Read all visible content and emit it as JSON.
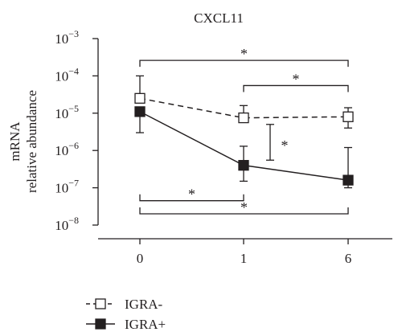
{
  "chart_data": {
    "type": "line",
    "title": "CXCL11",
    "ylabel_line1": "mRNA",
    "ylabel_line2": "relative abundance",
    "xlabel": "",
    "categories": [
      "0",
      "1",
      "6"
    ],
    "y_scale": "log",
    "ylim": [
      1e-08,
      0.001
    ],
    "y_ticks": [
      {
        "value": 1e-08,
        "base": "10",
        "exp": "−8"
      },
      {
        "value": 1e-07,
        "base": "10",
        "exp": "−7"
      },
      {
        "value": 1e-06,
        "base": "10",
        "exp": "−6"
      },
      {
        "value": 1e-05,
        "base": "10",
        "exp": "−5"
      },
      {
        "value": 0.0001,
        "base": "10",
        "exp": "−4"
      },
      {
        "value": 0.001,
        "base": "10",
        "exp": "−3"
      }
    ],
    "series": [
      {
        "name": "IGRA-",
        "style": "dashed",
        "marker": "open-square",
        "values": [
          2.5e-05,
          7.5e-06,
          8e-06
        ],
        "err_upper": [
          0.0001,
          1.6e-05,
          1.4e-05
        ],
        "err_lower": [
          null,
          null,
          4e-06
        ]
      },
      {
        "name": "IGRA+",
        "style": "solid",
        "marker": "filled-square",
        "values": [
          1.1e-05,
          4e-07,
          1.6e-07
        ],
        "err_upper": [
          null,
          1.3e-06,
          1.2e-06
        ],
        "err_lower": [
          3e-06,
          1.5e-07,
          1e-07
        ]
      }
    ],
    "significance": [
      {
        "label": "*",
        "type": "bracket-top",
        "from": "0",
        "to": "6",
        "at": 0.00026
      },
      {
        "label": "*",
        "type": "bracket-top",
        "from": "1",
        "to": "6",
        "at": 5.5e-05
      },
      {
        "label": "*",
        "type": "vertical",
        "at_x": "1-6",
        "y_top": 5e-06,
        "y_bottom": 5.5e-07
      },
      {
        "label": "*",
        "type": "bracket-bottom",
        "from": "0",
        "to": "1",
        "at": 4.5e-08
      },
      {
        "label": "*",
        "type": "bracket-bottom",
        "from": "0",
        "to": "6",
        "at": 2e-08
      }
    ],
    "colors": {
      "axis": "#231f20",
      "line": "#231f20",
      "fill": "#231f20",
      "open_fill": "#ffffff"
    },
    "legend_position": "bottom-left",
    "grid": false
  }
}
